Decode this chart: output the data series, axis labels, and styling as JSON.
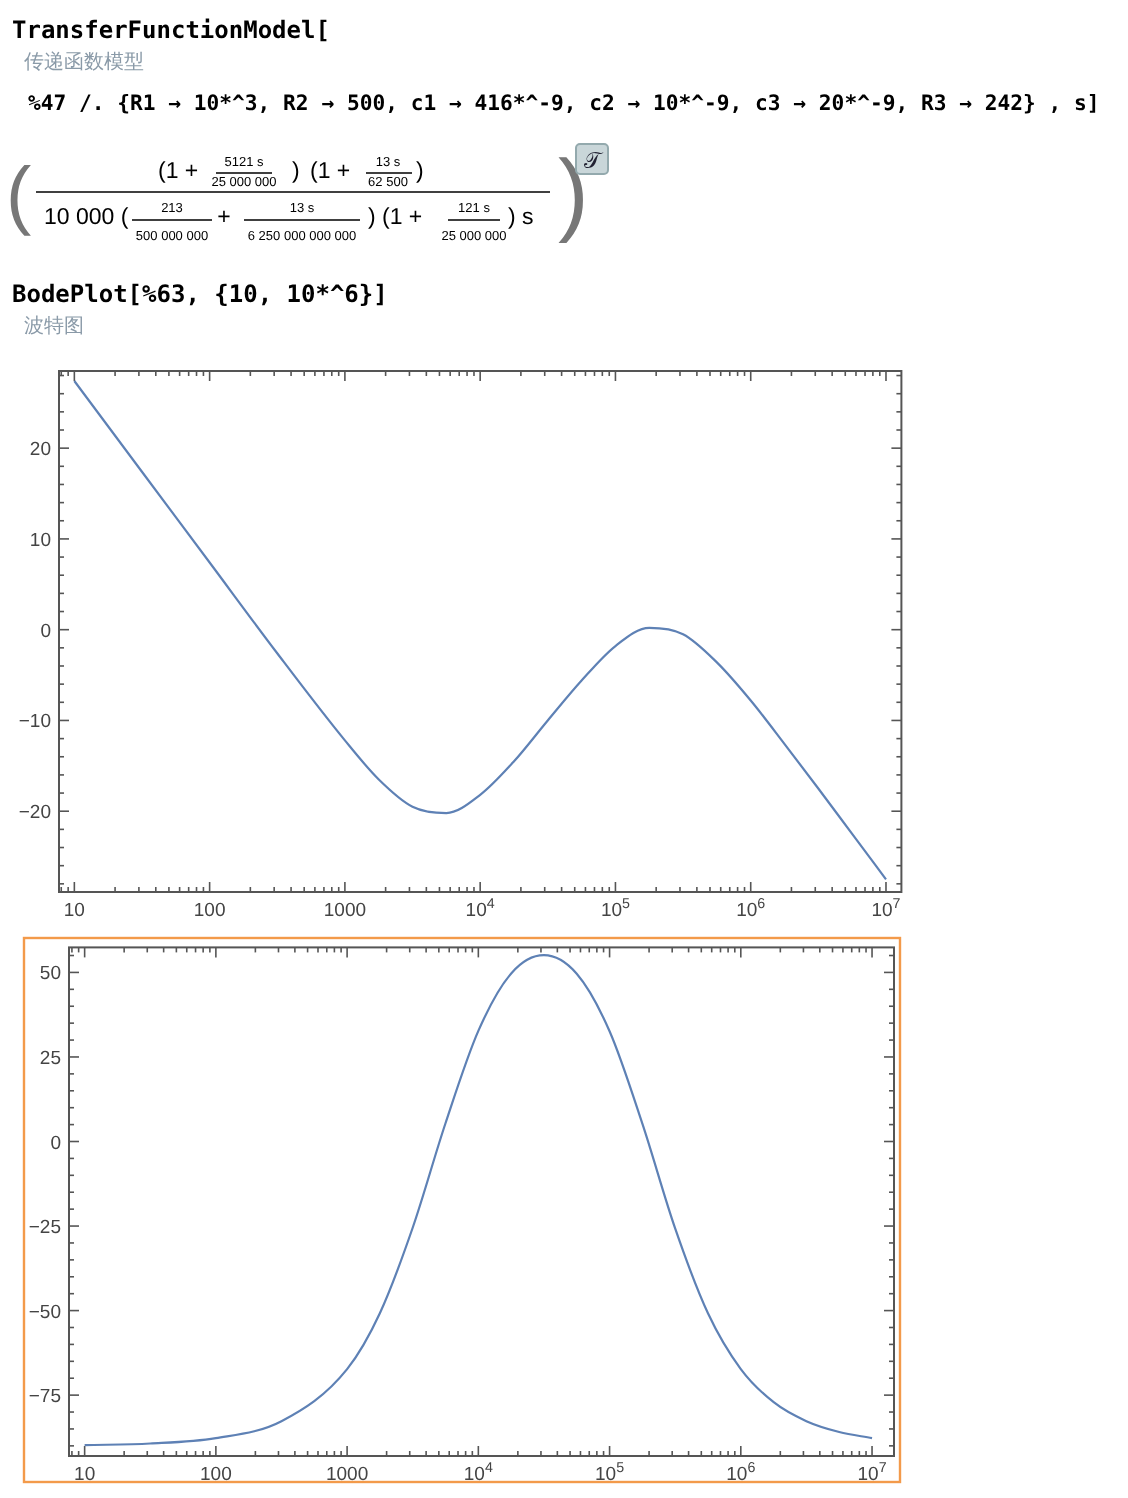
{
  "chart_data": [
    {
      "type": "line",
      "log": "x",
      "x": [
        10,
        31.6,
        100,
        316,
        1000,
        1780,
        3160,
        5620,
        10000,
        17800,
        31600,
        56200,
        100000,
        178000,
        316000,
        562000,
        1000000,
        1780000,
        3160000,
        5620000,
        10000000
      ],
      "series": [
        {
          "color": "#5e81b5",
          "values": [
            27.4,
            17.4,
            7.4,
            -2.6,
            -12.2,
            -16.5,
            -19.5,
            -20.2,
            -18.2,
            -14.5,
            -10.0,
            -5.6,
            -1.8,
            0.2,
            -0.5,
            -3.6,
            -7.8,
            -12.6,
            -17.5,
            -22.5,
            -27.5
          ]
        }
      ],
      "xlim": [
        7.7,
        13000000
      ],
      "ylim": [
        -28.9,
        28.5
      ],
      "xticks": [
        10,
        100,
        1000,
        {
          "value": 10000,
          "label": "10$^{4}$"
        },
        {
          "value": 100000,
          "label": "10$^{5}$"
        },
        {
          "value": 1000000,
          "label": "10$^{6}$"
        },
        {
          "value": 10000000,
          "label": "10$^{7}$"
        }
      ],
      "yticks": [
        {
          "value": -20,
          "label": "−20"
        },
        {
          "value": -10,
          "label": "−10"
        },
        0,
        10,
        20
      ],
      "annotations": [
        "TransferFunctionModel[",
        "传递函数模型",
        "%47 /. {R1 → 10*^3, R2 → 500, c1 → 416*^-9, c2 → 10*^-9, c3 → 20*^-9, R3 → 242} , s]",
        "(",
        "(1 +",
        "5121 s",
        "25 000 000",
        ")",
        "(1 +",
        "13 s",
        "62 500",
        ")",
        "10 000 (",
        "213",
        "500 000 000",
        "+",
        "13 s",
        "6 250 000 000 000",
        ")",
        "(1 +",
        "121 s",
        "25 000 000",
        ") s",
        ")",
        "𝒯",
        "BodePlot[%63, {10, 10*^6}]",
        "波特图"
      ]
    },
    {
      "type": "line",
      "log": "x",
      "x": [
        10,
        31.6,
        100,
        316,
        1000,
        1780,
        3160,
        5620,
        10000,
        17800,
        31600,
        56200,
        100000,
        178000,
        316000,
        562000,
        1000000,
        1780000,
        3160000,
        5620000,
        10000000
      ],
      "series": [
        {
          "color": "#5e81b5",
          "values": [
            -89.8,
            -89.3,
            -87.7,
            -82.7,
            -67.3,
            -50.7,
            -25.5,
            5.4,
            32.7,
            49.7,
            55.1,
            49.6,
            32.6,
            5.2,
            -25.7,
            -50.8,
            -67.3,
            -77.1,
            -82.7,
            -85.9,
            -87.7
          ]
        }
      ],
      "xlim": [
        7.6,
        14700000
      ],
      "ylim": [
        -93,
        57.4
      ],
      "xticks": [
        10,
        100,
        1000,
        {
          "value": 10000,
          "label": "10$^{4}$"
        },
        {
          "value": 100000,
          "label": "10$^{5}$"
        },
        {
          "value": 1000000,
          "label": "10$^{6}$"
        },
        {
          "value": 10000000,
          "label": "10$^{7}$"
        }
      ],
      "yticks": [
        {
          "value": -75,
          "label": "−75"
        },
        {
          "value": -50,
          "label": "−50"
        },
        {
          "value": -25,
          "label": "−25"
        },
        0,
        25,
        50
      ]
    }
  ]
}
